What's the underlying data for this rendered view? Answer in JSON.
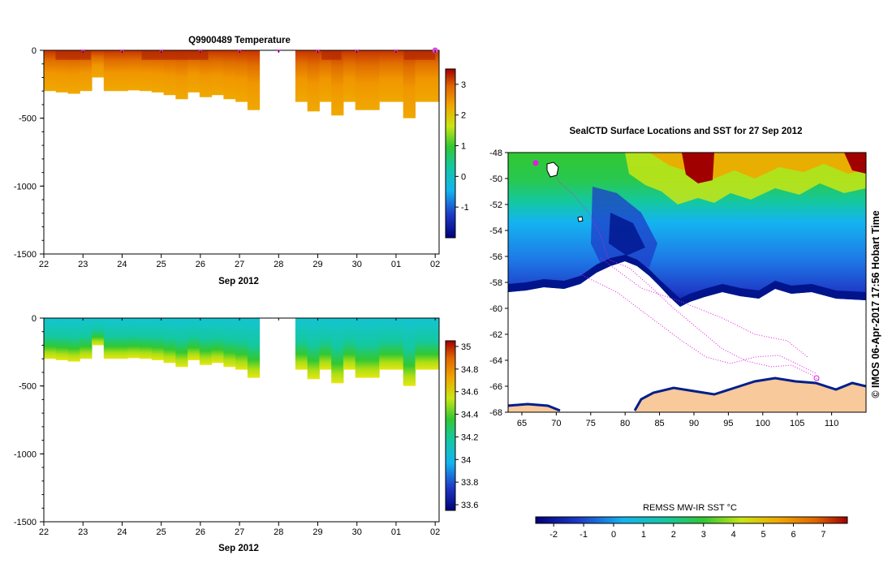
{
  "chart_data": [
    {
      "type": "heatmap",
      "id": "temperature-section",
      "title": "Q9900489  Temperature",
      "xlabel": "Sep 2012",
      "x_tick_labels": [
        "22",
        "23",
        "24",
        "25",
        "26",
        "27",
        "28",
        "29",
        "30",
        "01",
        "02"
      ],
      "x_tick_days": [
        22,
        23,
        24,
        25,
        26,
        27,
        28,
        29,
        30,
        31,
        32
      ],
      "xlim": [
        22,
        32.1
      ],
      "ylim": [
        -1500,
        0
      ],
      "y_ticks": [
        0,
        -500,
        -1000,
        -1500
      ],
      "y_tick_labels": [
        "0",
        "-500",
        "-1000",
        "-1500"
      ],
      "data_gap_days": [
        27.6,
        28.2
      ],
      "profile_markers_days": [
        23,
        24,
        25,
        26,
        27,
        28,
        29,
        30,
        31,
        32
      ],
      "profile_bottom_depth_m": [
        -300,
        -310,
        -320,
        -300,
        -200,
        -300,
        -300,
        -295,
        -300,
        -310,
        -330,
        -360,
        -310,
        -345,
        -330,
        -360,
        -380,
        -440,
        -380,
        -380,
        -380,
        -380,
        -450,
        -380,
        -480,
        -380,
        -440,
        -440,
        -380,
        -380,
        -500,
        -380,
        -380
      ],
      "value_range": [
        -2,
        3.5
      ],
      "colorbar_ticks": [
        "3",
        "2",
        "1",
        "0",
        "-1"
      ],
      "colorbar_values": [
        3,
        2,
        1,
        0,
        -1
      ],
      "depth_profile": [
        {
          "depth_m": 0,
          "value": 3.3
        },
        {
          "depth_m": -100,
          "value": 2.7
        },
        {
          "depth_m": -200,
          "value": 2.3
        },
        {
          "depth_m": -300,
          "value": 2.0
        },
        {
          "depth_m": -500,
          "value": 1.8
        }
      ]
    },
    {
      "type": "heatmap",
      "id": "salinity-section",
      "title": "",
      "xlabel": "Sep 2012",
      "x_tick_labels": [
        "22",
        "23",
        "24",
        "25",
        "26",
        "27",
        "28",
        "29",
        "30",
        "01",
        "02"
      ],
      "x_tick_days": [
        22,
        23,
        24,
        25,
        26,
        27,
        28,
        29,
        30,
        31,
        32
      ],
      "xlim": [
        22,
        32.1
      ],
      "ylim": [
        -1500,
        0
      ],
      "y_ticks": [
        0,
        -500,
        -1000,
        -1500
      ],
      "y_tick_labels": [
        "0",
        "-500",
        "-1000",
        "-1500"
      ],
      "data_gap_days": [
        27.6,
        28.2
      ],
      "value_range": [
        33.55,
        35.05
      ],
      "colorbar_ticks": [
        "35",
        "34.8",
        "34.6",
        "34.4",
        "34.2",
        "34",
        "33.8",
        "33.6"
      ],
      "colorbar_values": [
        35,
        34.8,
        34.6,
        34.4,
        34.2,
        34,
        33.8,
        33.6
      ],
      "depth_profile": [
        {
          "depth_m": 0,
          "value": 33.98
        },
        {
          "depth_m": -150,
          "value": 34.08
        },
        {
          "depth_m": -250,
          "value": 34.28
        },
        {
          "depth_m": -350,
          "value": 34.5
        },
        {
          "depth_m": -450,
          "value": 34.7
        }
      ]
    },
    {
      "type": "heatmap",
      "id": "sst-map",
      "title": "SealCTD Surface Locations and SST for 27 Sep 2012",
      "x_tick_labels": [
        "65",
        "70",
        "75",
        "80",
        "85",
        "90",
        "95",
        "100",
        "105",
        "110"
      ],
      "x_tick_values": [
        65,
        70,
        75,
        80,
        85,
        90,
        95,
        100,
        105,
        110
      ],
      "y_tick_labels": [
        "-48",
        "-50",
        "-52",
        "-54",
        "-56",
        "-58",
        "-60",
        "-62",
        "-64",
        "-66",
        "-68"
      ],
      "y_tick_values": [
        -48,
        -50,
        -52,
        -54,
        -56,
        -58,
        -60,
        -62,
        -64,
        -66,
        -68
      ],
      "xlim": [
        63,
        115
      ],
      "ylim": [
        -68,
        -48
      ],
      "colorbar_label": "REMSS MW-IR SST °C",
      "colorbar_ticks": [
        "-2",
        "-1",
        "0",
        "1",
        "2",
        "3",
        "4",
        "5",
        "6",
        "7"
      ],
      "colorbar_values": [
        -2,
        -1,
        0,
        1,
        2,
        3,
        4,
        5,
        6,
        7
      ],
      "value_range": [
        -2.6,
        7.8
      ],
      "land_color": "#f7c99b",
      "track_color": "#e01ce0",
      "current_position": {
        "lon": 67,
        "lat": -48.8
      }
    }
  ],
  "credit": "© IMOS 06-Apr-2017 17:56 Hobart Time",
  "colors": {
    "marker": "#d94cd9",
    "land": "#f7c99b",
    "ice_edge": "#001e8c"
  }
}
